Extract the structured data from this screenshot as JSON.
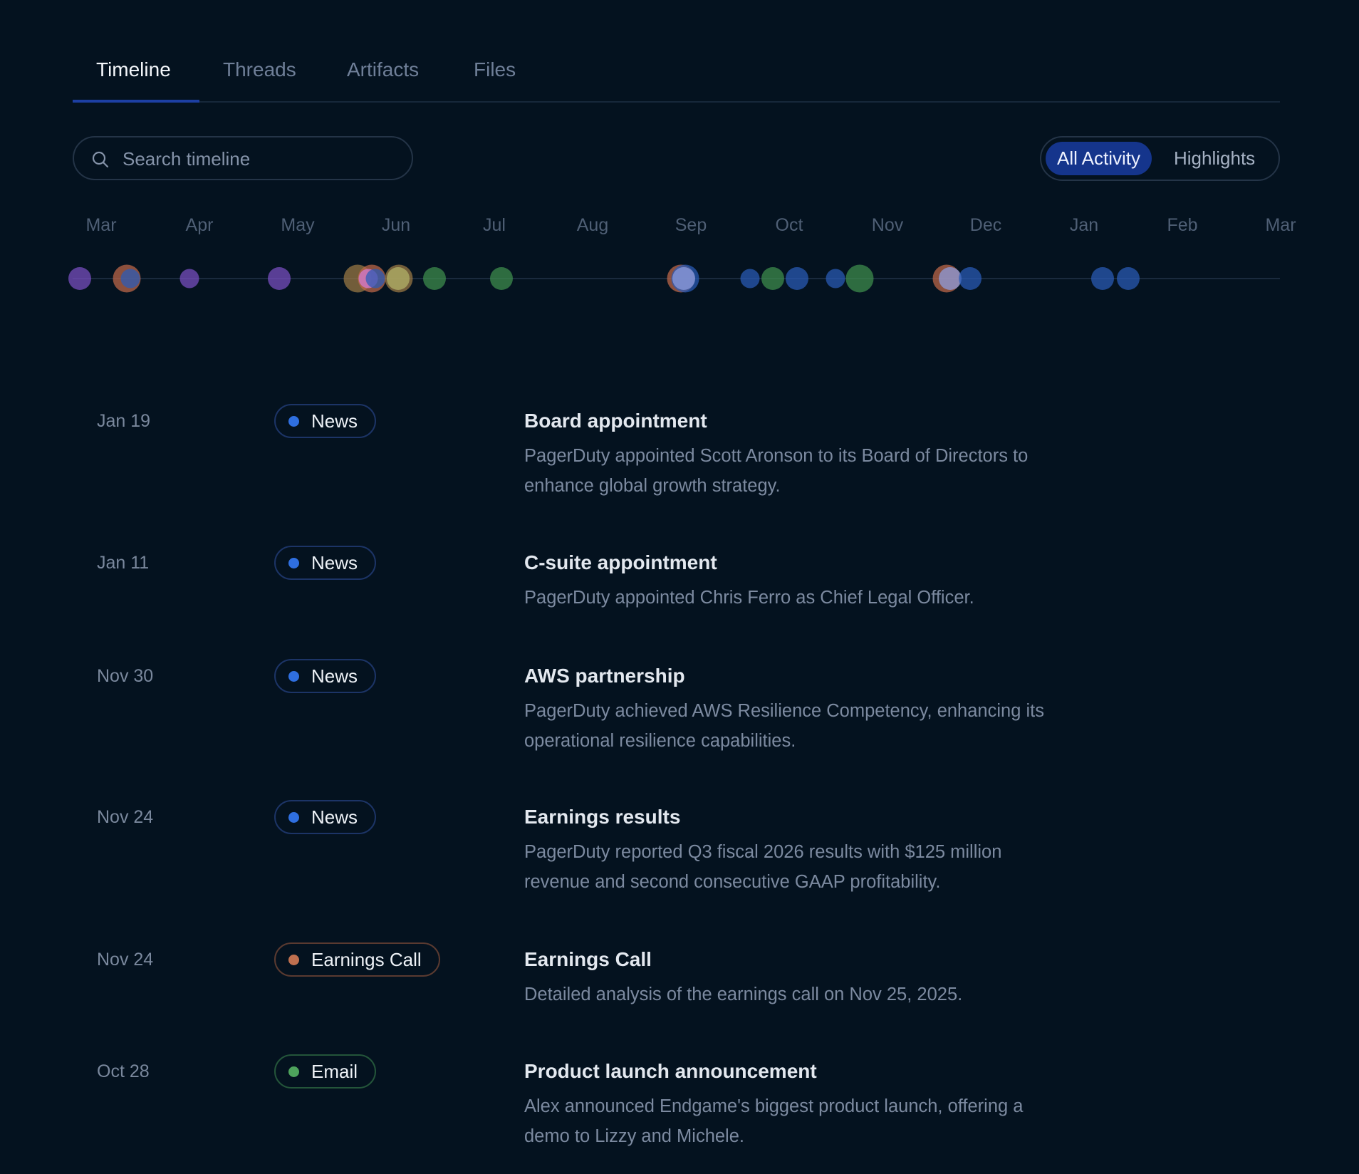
{
  "tabs": [
    {
      "label": "Timeline",
      "active": true
    },
    {
      "label": "Threads"
    },
    {
      "label": "Artifacts"
    },
    {
      "label": "Files"
    }
  ],
  "search": {
    "placeholder": "Search timeline",
    "icon": "search-icon"
  },
  "filter": {
    "options": [
      "All Activity",
      "Highlights"
    ],
    "selected": "All Activity"
  },
  "timeline": {
    "months": [
      "Mar",
      "Apr",
      "May",
      "Jun",
      "Jul",
      "Aug",
      "Sep",
      "Oct",
      "Nov",
      "Dec",
      "Jan",
      "Feb",
      "Mar"
    ],
    "colors": {
      "purple": "#7a4fc4",
      "orange": "#c0684a",
      "blue": "#2a5cb8",
      "green": "#3f8f4e",
      "tan": "#9c7a45",
      "yellow": "#b4b46a",
      "pink": "#d47ad8",
      "lavender": "#8fa0e0"
    },
    "events": [
      {
        "month_pos": -0.22,
        "type": "purple",
        "size": "medium"
      },
      {
        "month_pos": 0.26,
        "type": "orange",
        "size": "large"
      },
      {
        "month_pos": 0.3,
        "type": "blue",
        "size": "small"
      },
      {
        "month_pos": 0.9,
        "type": "purple",
        "size": "small"
      },
      {
        "month_pos": 1.81,
        "type": "purple",
        "size": "medium"
      },
      {
        "month_pos": 2.61,
        "type": "tan",
        "size": "large"
      },
      {
        "month_pos": 2.75,
        "type": "orange",
        "size": "large"
      },
      {
        "month_pos": 2.72,
        "type": "pink",
        "size": "small"
      },
      {
        "month_pos": 2.79,
        "type": "blue",
        "size": "small"
      },
      {
        "month_pos": 3.03,
        "type": "tan",
        "size": "large"
      },
      {
        "month_pos": 3.02,
        "type": "yellow",
        "size": "medium"
      },
      {
        "month_pos": 3.39,
        "type": "green",
        "size": "medium"
      },
      {
        "month_pos": 4.07,
        "type": "green",
        "size": "medium"
      },
      {
        "month_pos": 5.9,
        "type": "orange",
        "size": "large"
      },
      {
        "month_pos": 5.94,
        "type": "blue",
        "size": "large"
      },
      {
        "month_pos": 5.93,
        "type": "lavender",
        "size": "medium"
      },
      {
        "month_pos": 6.6,
        "type": "blue",
        "size": "small"
      },
      {
        "month_pos": 6.83,
        "type": "green",
        "size": "medium"
      },
      {
        "month_pos": 7.08,
        "type": "blue",
        "size": "medium"
      },
      {
        "month_pos": 7.47,
        "type": "blue",
        "size": "small"
      },
      {
        "month_pos": 7.72,
        "type": "green",
        "size": "large"
      },
      {
        "month_pos": 8.6,
        "type": "orange",
        "size": "large"
      },
      {
        "month_pos": 8.64,
        "type": "lavender",
        "size": "medium"
      },
      {
        "month_pos": 8.84,
        "type": "blue",
        "size": "medium"
      },
      {
        "month_pos": 10.19,
        "type": "blue",
        "size": "medium"
      },
      {
        "month_pos": 10.45,
        "type": "blue",
        "size": "medium"
      }
    ]
  },
  "badge_styles": {
    "News": {
      "border": "#1c3466",
      "dot": "#2f6fe0"
    },
    "Earnings Call": {
      "border": "#5a3a30",
      "dot": "#c0704f"
    },
    "Email": {
      "border": "#24553a",
      "dot": "#4ea35c"
    }
  },
  "entries": [
    {
      "date": "Jan 19",
      "badge": "News",
      "title": "Board appointment",
      "description": "PagerDuty appointed Scott Aronson to its Board of Directors to enhance global growth strategy."
    },
    {
      "date": "Jan 11",
      "badge": "News",
      "title": "C-suite appointment",
      "description": "PagerDuty appointed Chris Ferro as Chief Legal Officer."
    },
    {
      "date": "Nov 30",
      "badge": "News",
      "title": "AWS partnership",
      "description": "PagerDuty achieved AWS Resilience Competency, enhancing its operational resilience capabilities."
    },
    {
      "date": "Nov 24",
      "badge": "News",
      "title": "Earnings results",
      "description": "PagerDuty reported Q3 fiscal 2026 results with $125 million revenue and second consecutive GAAP profitability."
    },
    {
      "date": "Nov 24",
      "badge": "Earnings Call",
      "title": "Earnings Call",
      "description": "Detailed analysis of the earnings call on Nov 25, 2025."
    },
    {
      "date": "Oct 28",
      "badge": "Email",
      "title": "Product launch announcement",
      "description": "Alex announced Endgame's biggest product launch, offering a demo to Lizzy and Michele."
    }
  ]
}
